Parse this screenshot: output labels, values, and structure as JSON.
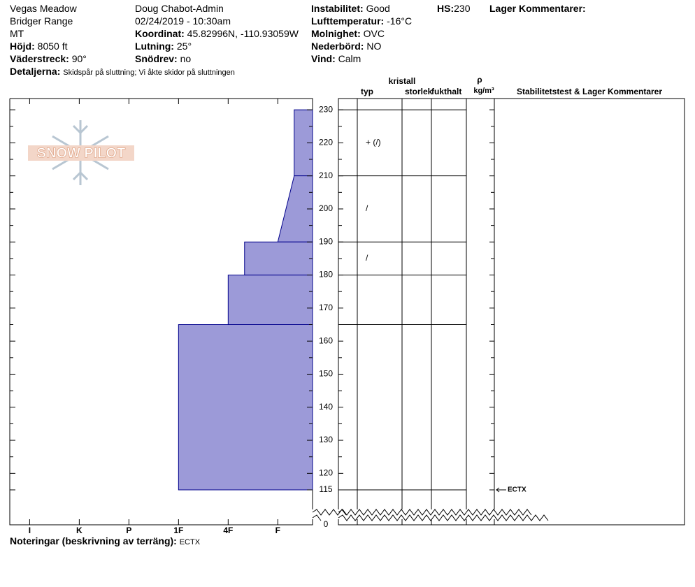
{
  "header": {
    "location": "Vegas Meadow",
    "range": "Bridger Range",
    "state": "MT",
    "elevation": {
      "label": "Höjd:",
      "value": "8050 ft"
    },
    "aspect": {
      "label": "Väderstreck:",
      "value": "90°"
    },
    "observer": "Doug Chabot-Admin",
    "datetime": "02/24/2019 - 10:30am",
    "coordinates": {
      "label": "Koordinat:",
      "value": "45.82996N, -110.93059W"
    },
    "slope": {
      "label": "Lutning:",
      "value": "25°"
    },
    "blowing_snow": {
      "label": "Snödrev:",
      "value": "no"
    },
    "instability": {
      "label": "Instabilitet:",
      "value": "Good"
    },
    "air_temp": {
      "label": "Lufttemperatur:",
      "value": "-16°C"
    },
    "sky": {
      "label": "Molnighet:",
      "value": "OVC"
    },
    "precip": {
      "label": "Nederbörd:",
      "value": "NO"
    },
    "wind": {
      "label": "Vind:",
      "value": "Calm"
    },
    "hs": {
      "label": "HS:",
      "value": "230"
    },
    "layer_comments_title": "Lager Kommentarer:",
    "details": {
      "label": "Detaljerna:",
      "value": "Skidspår på sluttning;  Vi åkte skidor på sluttningen"
    }
  },
  "logo": "SNOW PILOT",
  "chart_data": {
    "type": "snow-profile",
    "color": "#9c9ad8",
    "edge_color": "#00008b",
    "ylim": [
      0,
      233.4
    ],
    "axis_break": 115,
    "yticks": [
      0,
      115,
      120,
      130,
      140,
      150,
      160,
      170,
      180,
      190,
      200,
      210,
      220,
      230
    ],
    "minor_yticks": [
      125,
      135,
      145,
      155,
      165,
      175,
      185,
      195,
      205,
      215,
      225
    ],
    "xlim": [
      6.4,
      0.3
    ],
    "xticks": [
      {
        "value": 6,
        "label": "I"
      },
      {
        "value": 5,
        "label": "K"
      },
      {
        "value": 4,
        "label": "P"
      },
      {
        "value": 3,
        "label": "1F"
      },
      {
        "value": 2,
        "label": "4F"
      },
      {
        "value": 1,
        "label": "F"
      }
    ],
    "layers": [
      {
        "top": 230,
        "bottom": 210,
        "hardness": [
          0.67,
          0.67
        ]
      },
      {
        "top": 210,
        "bottom": 190,
        "hardness": [
          0.67,
          1
        ]
      },
      {
        "top": 190,
        "bottom": 180,
        "hardness": [
          1.67,
          1.67
        ]
      },
      {
        "top": 180,
        "bottom": 165,
        "hardness": [
          2,
          2
        ]
      },
      {
        "top": 165,
        "bottom": 115,
        "hardness": [
          3,
          3
        ]
      }
    ],
    "crystals": [
      {
        "depth": 220,
        "symbol": "+ (/)"
      },
      {
        "depth": 200,
        "symbol": "/"
      },
      {
        "depth": 185,
        "symbol": "/"
      }
    ],
    "columns": {
      "crystal": "kristall",
      "type": "typ",
      "size": "storlek",
      "moisture": "fukthalt",
      "density_symbol": "ρ",
      "density_unit": "kg/m³",
      "tests": "Stabilitetstest & Lager Kommentarer"
    },
    "tests": [
      {
        "depth": 115,
        "label": "ECTX"
      }
    ]
  },
  "footer": {
    "label": "Noteringar (beskrivning av terräng):",
    "value": "ECTX"
  }
}
